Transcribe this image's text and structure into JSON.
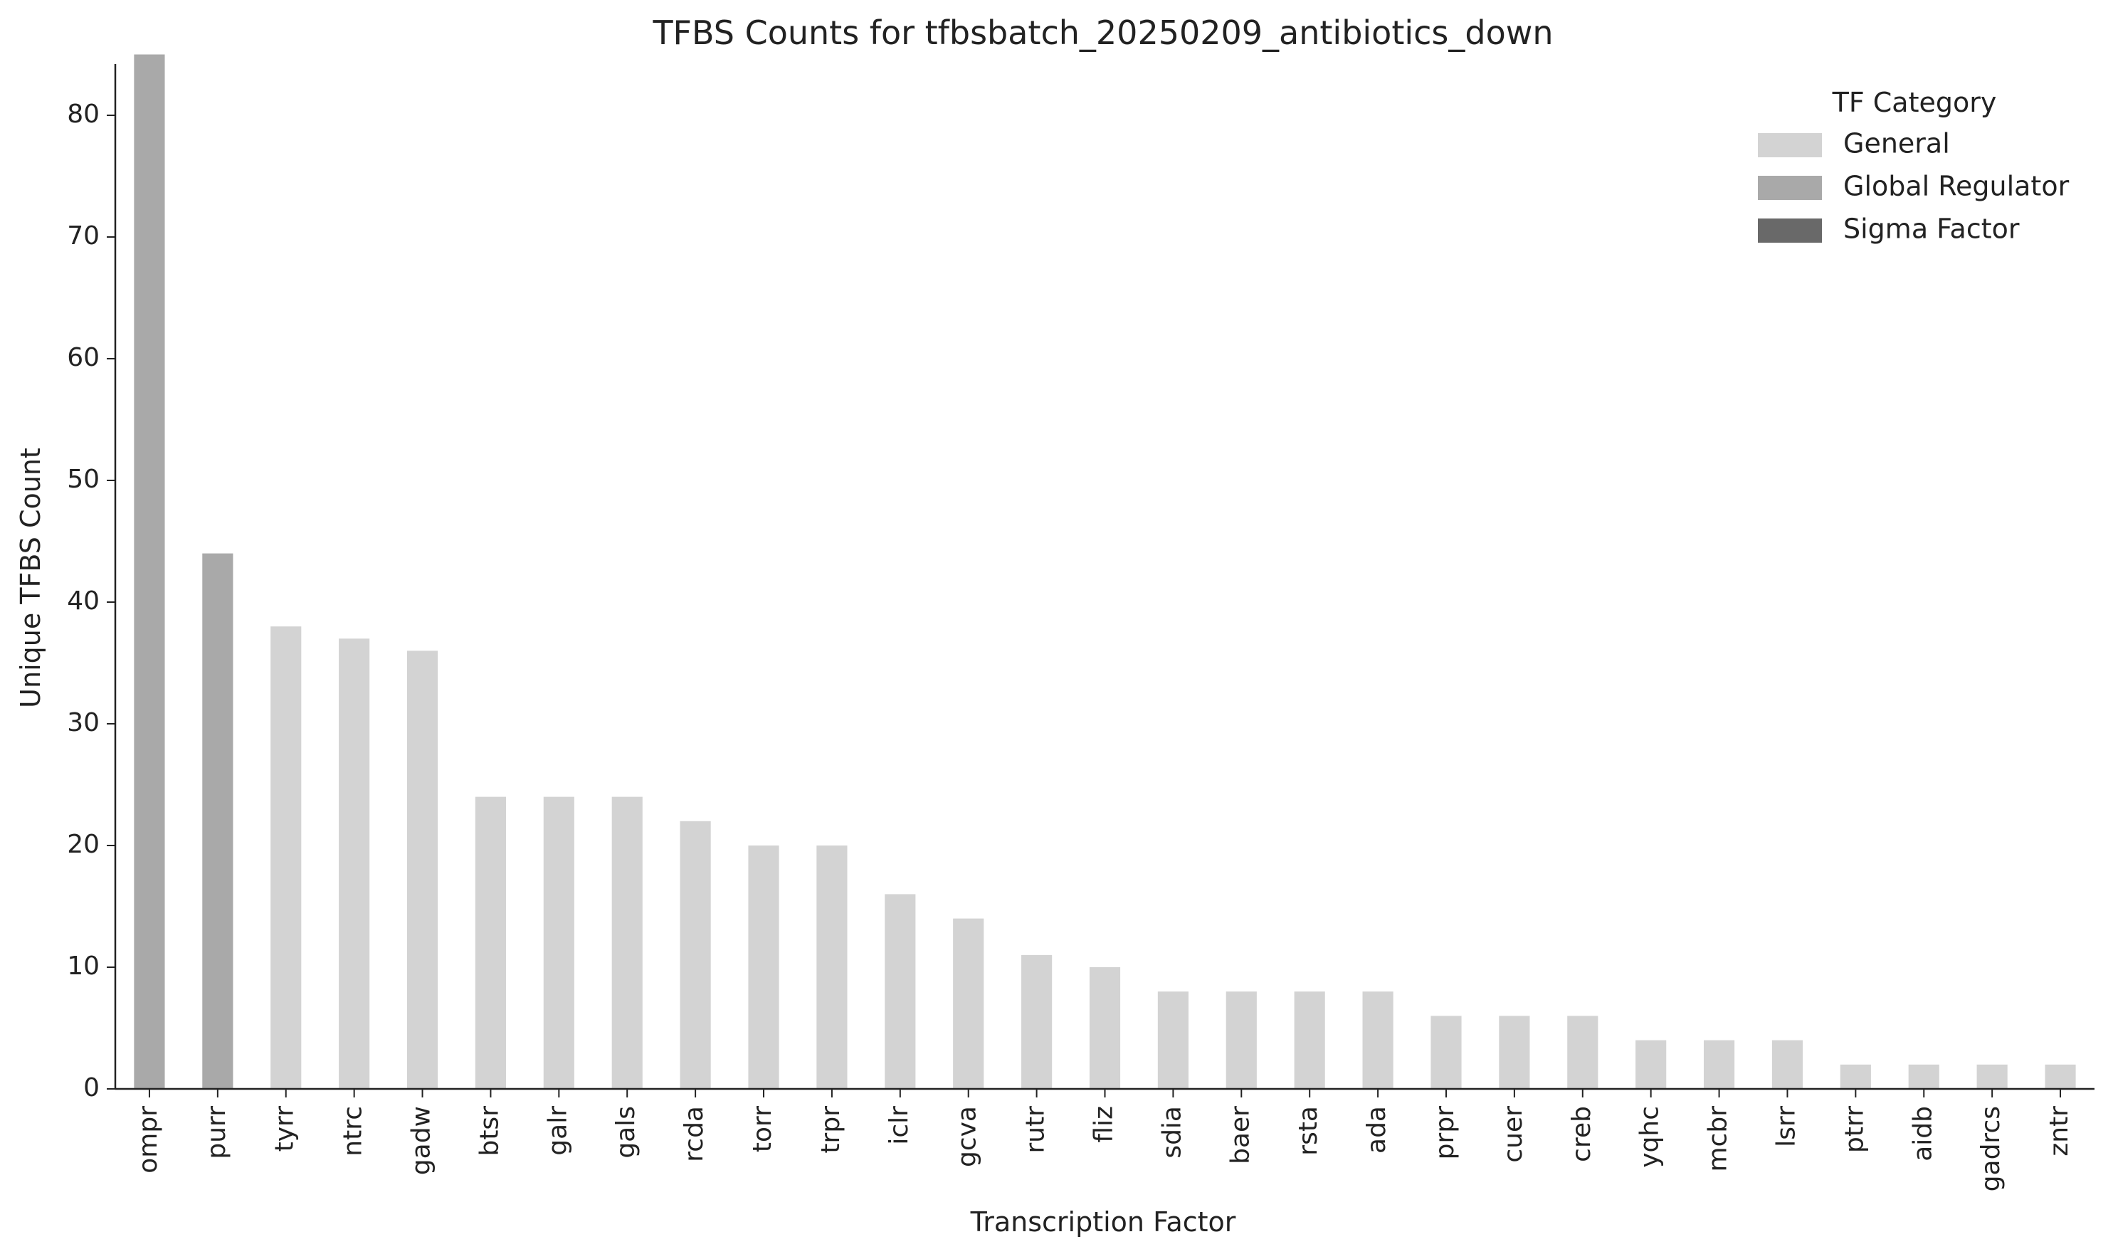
{
  "chart_data": {
    "type": "bar",
    "title": "TFBS Counts for tfbsbatch_20250209_antibiotics_down",
    "xlabel": "Transcription Factor",
    "ylabel": "Unique TFBS Count",
    "ylim": [
      0,
      89
    ],
    "yticks": [
      0,
      10,
      20,
      30,
      40,
      50,
      60,
      70,
      80
    ],
    "grid": false,
    "legend": {
      "title": "TF Category",
      "position": "top-right",
      "entries": [
        {
          "label": "General",
          "color": "#d3d3d3"
        },
        {
          "label": "Global Regulator",
          "color": "#a9a9a9"
        },
        {
          "label": "Sigma Factor",
          "color": "#696969"
        }
      ]
    },
    "categories": [
      "ompr",
      "purr",
      "tyrr",
      "ntrc",
      "gadw",
      "btsr",
      "galr",
      "gals",
      "rcda",
      "torr",
      "trpr",
      "iclr",
      "gcva",
      "rutr",
      "fliz",
      "sdia",
      "baer",
      "rsta",
      "ada",
      "prpr",
      "cuer",
      "creb",
      "yqhc",
      "mcbr",
      "lsrr",
      "ptrr",
      "aidb",
      "gadrcs",
      "zntr"
    ],
    "values": [
      85,
      44,
      38,
      37,
      36,
      24,
      24,
      24,
      22,
      20,
      20,
      16,
      14,
      11,
      10,
      8,
      8,
      8,
      8,
      6,
      6,
      6,
      4,
      4,
      4,
      2,
      2,
      2,
      2
    ],
    "bar_category": [
      "Global Regulator",
      "Global Regulator",
      "General",
      "General",
      "General",
      "General",
      "General",
      "General",
      "General",
      "General",
      "General",
      "General",
      "General",
      "General",
      "General",
      "General",
      "General",
      "General",
      "General",
      "General",
      "General",
      "General",
      "General",
      "General",
      "General",
      "General",
      "General",
      "General",
      "General"
    ]
  }
}
